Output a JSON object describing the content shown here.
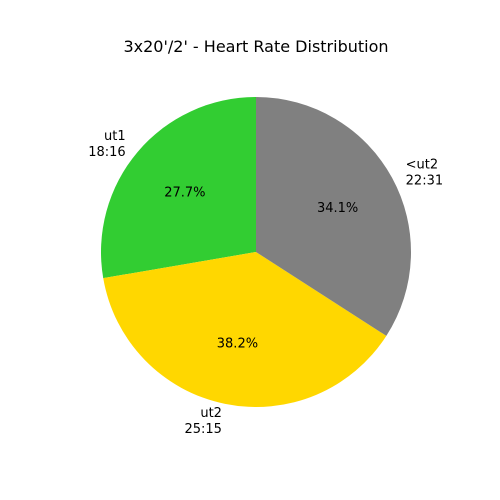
{
  "chart_data": {
    "type": "pie",
    "title": "3x20'/2' - Heart Rate Distribution",
    "start_angle_deg": 90,
    "direction": "counterclockwise",
    "slices": [
      {
        "label": "ut1",
        "duration": "18:16",
        "percent_label": "27.7%",
        "value": 27.7,
        "color": "#32CD32"
      },
      {
        "label": "ut2",
        "duration": "25:15",
        "percent_label": "38.2%",
        "value": 38.2,
        "color": "#FFD700"
      },
      {
        "label": "<ut2",
        "duration": "22:31",
        "percent_label": "34.1%",
        "value": 34.1,
        "color": "#808080"
      }
    ]
  }
}
